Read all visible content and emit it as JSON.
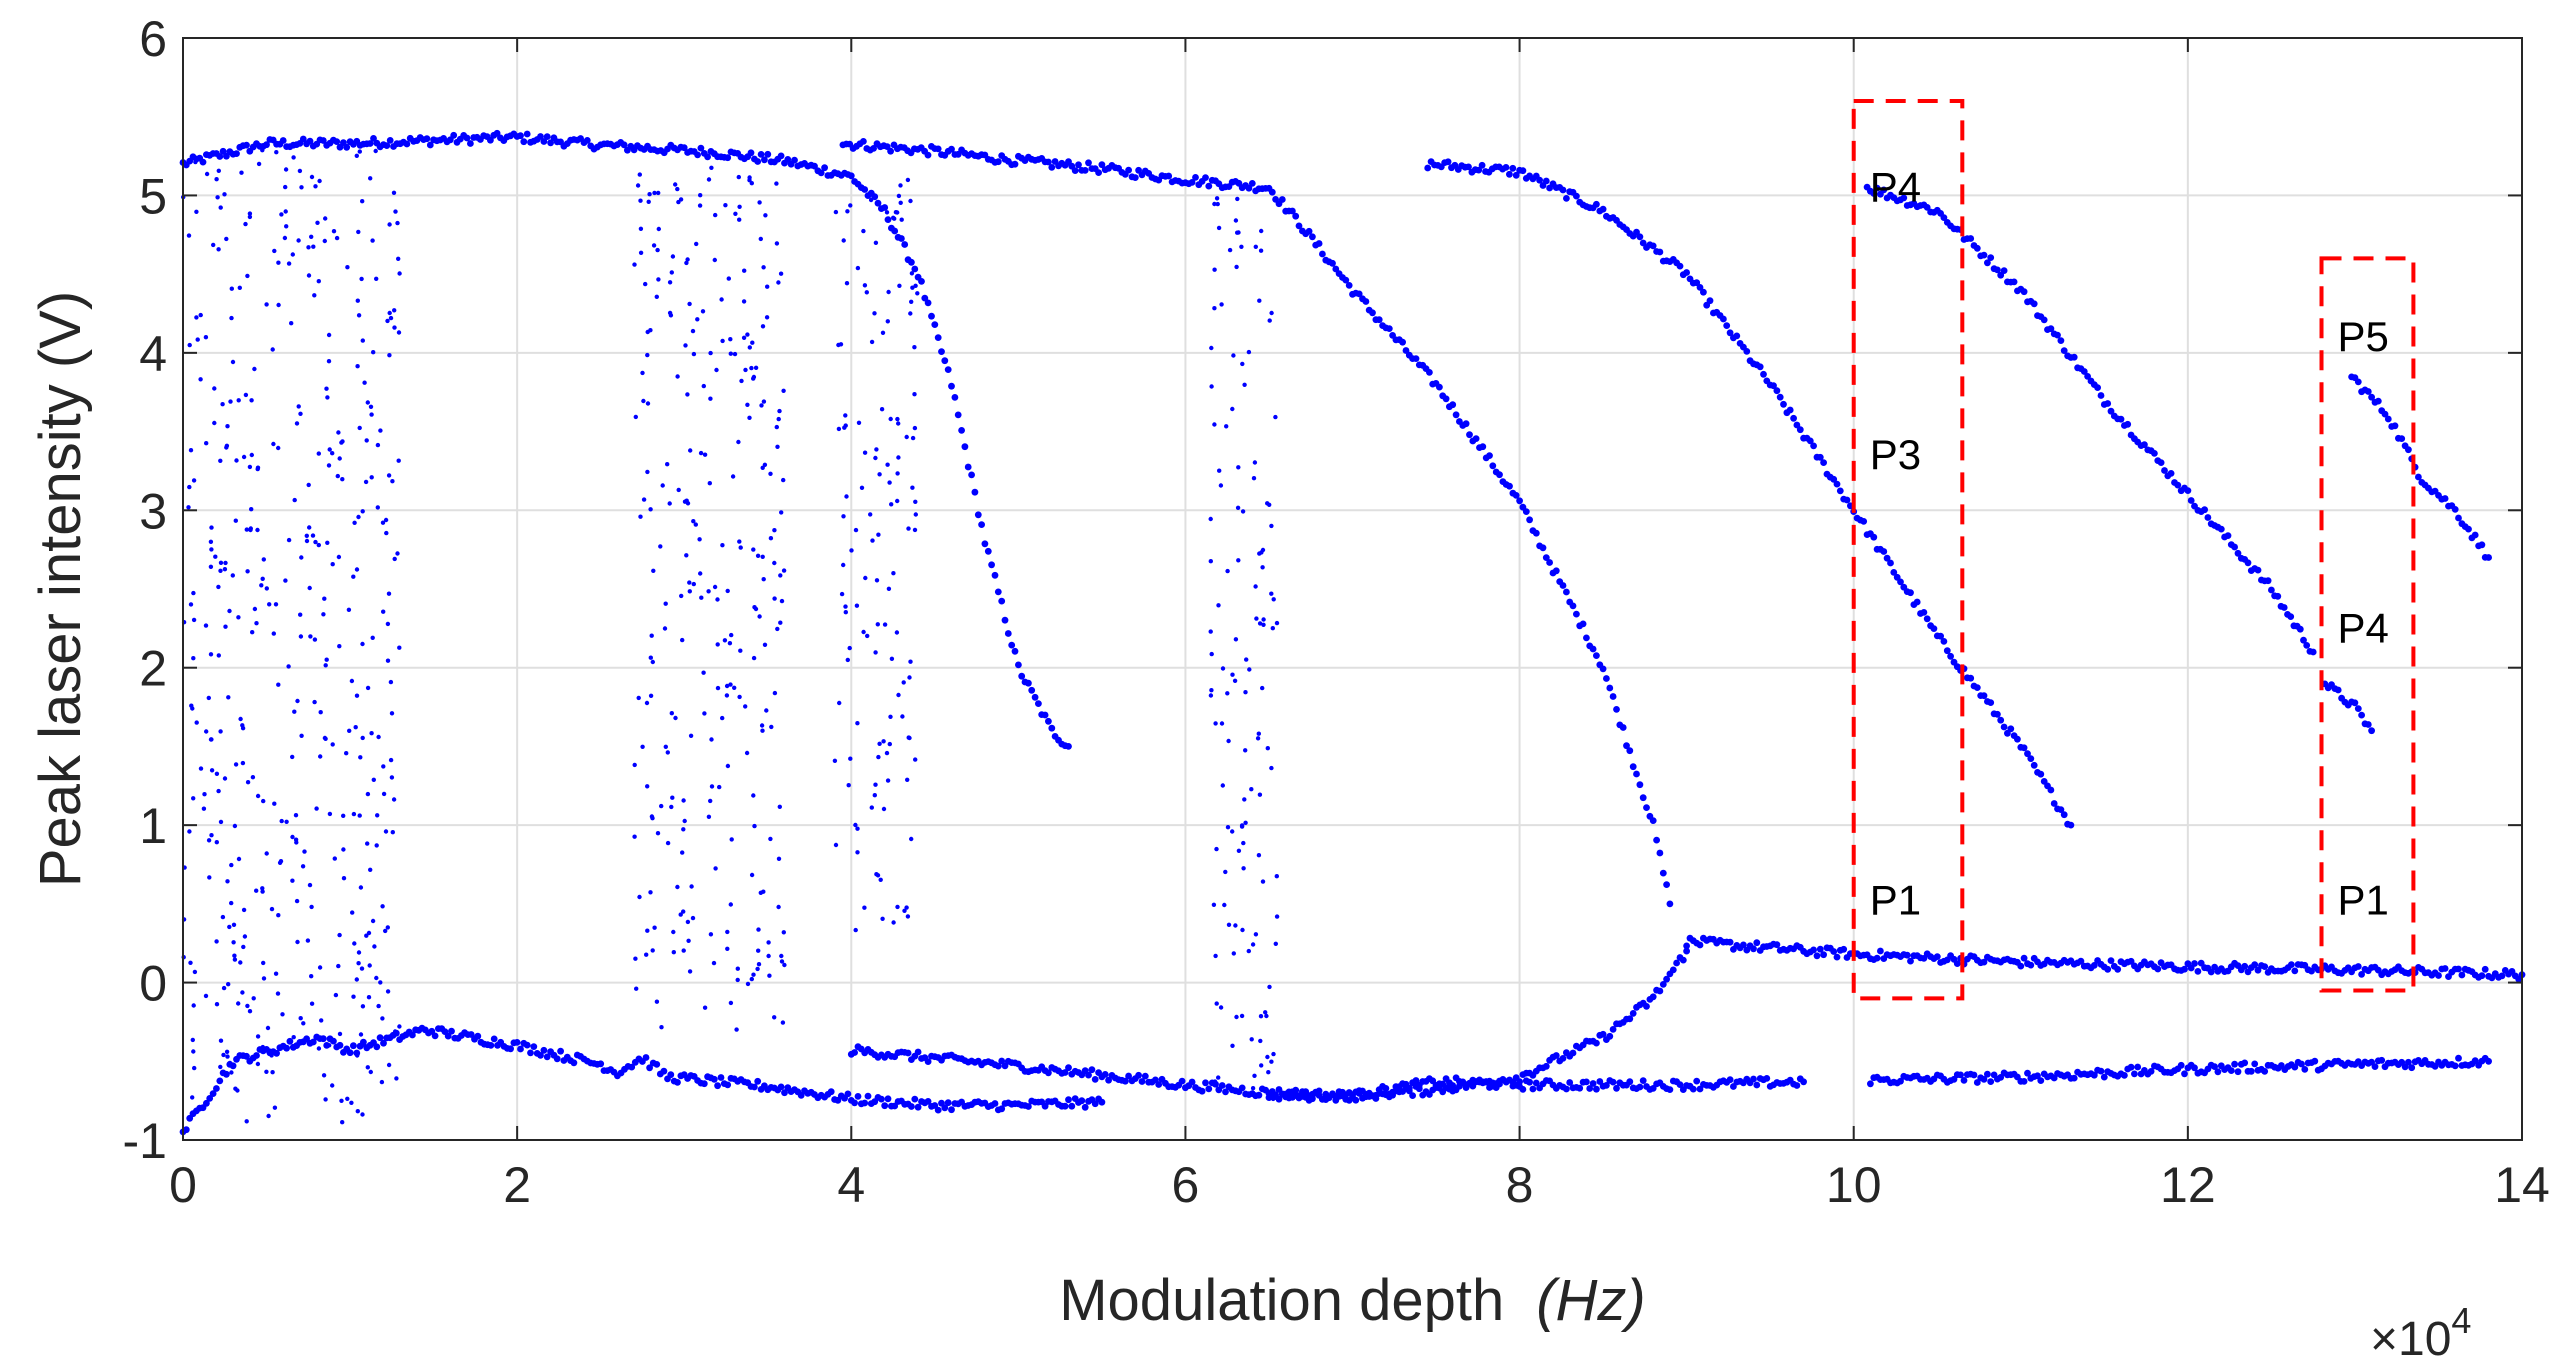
{
  "chart_data": {
    "type": "scatter",
    "title": "",
    "xlabel": "Modulation depth",
    "xlabel_unit": "(Hz)",
    "ylabel": "Peak laser intensity  (V)",
    "x_exponent_label": "×10",
    "x_exponent_power": "4",
    "xlim": [
      0,
      14
    ],
    "ylim": [
      -1,
      6
    ],
    "x_ticks": [
      "0",
      "2",
      "4",
      "6",
      "8",
      "10",
      "12",
      "14"
    ],
    "y_ticks": [
      "-1",
      "0",
      "1",
      "2",
      "3",
      "4",
      "5",
      "6"
    ],
    "grid": true,
    "marker_color": "#0000ff",
    "highlight_color": "#ff0000",
    "series": [
      {
        "branches": [
          {
            "kind": "curve",
            "points": [
              [
                0.0,
                5.2
              ],
              [
                0.5,
                5.33
              ],
              [
                1.0,
                5.33
              ],
              [
                1.5,
                5.35
              ],
              [
                2.0,
                5.37
              ],
              [
                2.5,
                5.32
              ],
              [
                2.8,
                5.3
              ],
              [
                3.2,
                5.27
              ],
              [
                3.6,
                5.22
              ],
              [
                4.0,
                5.12
              ],
              [
                4.2,
                4.9
              ],
              [
                4.4,
                4.5
              ],
              [
                4.6,
                3.8
              ],
              [
                4.8,
                2.8
              ],
              [
                5.0,
                2.0
              ],
              [
                5.2,
                1.6
              ],
              [
                5.3,
                1.5
              ]
            ]
          },
          {
            "kind": "curve",
            "points": [
              [
                3.95,
                5.33
              ],
              [
                4.5,
                5.28
              ],
              [
                5.0,
                5.22
              ],
              [
                5.5,
                5.17
              ],
              [
                6.0,
                5.1
              ],
              [
                6.5,
                5.05
              ],
              [
                6.7,
                4.8
              ],
              [
                7.0,
                4.4
              ],
              [
                7.5,
                3.8
              ],
              [
                8.0,
                3.05
              ],
              [
                8.5,
                2.0
              ],
              [
                8.8,
                1.0
              ],
              [
                8.9,
                0.5
              ]
            ]
          },
          {
            "kind": "curve",
            "points": [
              [
                7.45,
                5.2
              ],
              [
                8.0,
                5.15
              ],
              [
                8.5,
                4.9
              ],
              [
                9.0,
                4.5
              ],
              [
                9.5,
                3.8
              ],
              [
                10.0,
                3.0
              ],
              [
                10.5,
                2.2
              ],
              [
                11.0,
                1.5
              ],
              [
                11.3,
                1.0
              ]
            ]
          },
          {
            "kind": "curve",
            "points": [
              [
                10.08,
                5.05
              ],
              [
                10.5,
                4.9
              ],
              [
                11.0,
                4.4
              ],
              [
                11.5,
                3.7
              ],
              [
                12.0,
                3.1
              ],
              [
                12.5,
                2.5
              ],
              [
                12.75,
                2.1
              ]
            ]
          },
          {
            "kind": "curve",
            "points": [
              [
                12.82,
                1.9
              ],
              [
                13.0,
                1.75
              ],
              [
                13.1,
                1.6
              ]
            ]
          },
          {
            "kind": "curve",
            "points": [
              [
                12.98,
                3.85
              ],
              [
                13.2,
                3.6
              ],
              [
                13.4,
                3.2
              ],
              [
                13.6,
                3.0
              ],
              [
                13.8,
                2.7
              ]
            ]
          },
          {
            "kind": "curve",
            "points": [
              [
                9.0,
                0.26
              ],
              [
                10.0,
                0.18
              ],
              [
                11.0,
                0.13
              ],
              [
                12.0,
                0.1
              ],
              [
                13.0,
                0.08
              ],
              [
                14.0,
                0.05
              ]
            ]
          },
          {
            "kind": "curve",
            "points": [
              [
                0.0,
                -0.95
              ],
              [
                0.3,
                -0.5
              ],
              [
                0.8,
                -0.35
              ],
              [
                1.0,
                -0.43
              ],
              [
                1.2,
                -0.37
              ],
              [
                1.45,
                -0.3
              ],
              [
                2.0,
                -0.4
              ],
              [
                2.5,
                -0.52
              ],
              [
                2.6,
                -0.57
              ],
              [
                2.75,
                -0.48
              ],
              [
                2.9,
                -0.6
              ],
              [
                3.5,
                -0.66
              ],
              [
                4.0,
                -0.74
              ],
              [
                4.5,
                -0.78
              ],
              [
                5.0,
                -0.78
              ],
              [
                5.5,
                -0.76
              ]
            ]
          },
          {
            "kind": "curve",
            "points": [
              [
                4.0,
                -0.43
              ],
              [
                5.0,
                -0.53
              ],
              [
                6.0,
                -0.65
              ],
              [
                6.5,
                -0.7
              ],
              [
                7.0,
                -0.72
              ],
              [
                7.5,
                -0.63
              ],
              [
                8.0,
                -0.65
              ],
              [
                9.0,
                -0.65
              ],
              [
                9.7,
                -0.63
              ]
            ]
          },
          {
            "kind": "curve",
            "points": [
              [
                6.5,
                -0.72
              ],
              [
                7.0,
                -0.72
              ],
              [
                7.5,
                -0.68
              ],
              [
                8.0,
                -0.6
              ],
              [
                8.5,
                -0.35
              ],
              [
                8.8,
                -0.1
              ],
              [
                9.0,
                0.2
              ]
            ]
          },
          {
            "kind": "curve",
            "points": [
              [
                10.1,
                -0.62
              ],
              [
                11.0,
                -0.6
              ],
              [
                12.0,
                -0.55
              ],
              [
                13.0,
                -0.52
              ],
              [
                13.8,
                -0.5
              ]
            ]
          },
          {
            "kind": "band",
            "x": [
              2.7,
              3.6
            ],
            "y": [
              -0.3,
              5.2
            ]
          },
          {
            "kind": "band",
            "x": [
              3.9,
              4.4
            ],
            "y": [
              0.3,
              5.1
            ]
          },
          {
            "kind": "band",
            "x": [
              6.15,
              6.55
            ],
            "y": [
              -0.75,
              5.1
            ]
          },
          {
            "kind": "band",
            "x": [
              0.0,
              1.3
            ],
            "y": [
              -0.9,
              5.3
            ]
          }
        ]
      }
    ],
    "highlight_boxes": [
      {
        "x": [
          10.0,
          10.65
        ],
        "y": [
          -0.1,
          5.6
        ],
        "labels": [
          {
            "text": "P4",
            "y": 5.05
          },
          {
            "text": "P3",
            "y": 3.35
          },
          {
            "text": "P1",
            "y": 0.52
          }
        ]
      },
      {
        "x": [
          12.8,
          13.35
        ],
        "y": [
          -0.05,
          4.6
        ],
        "labels": [
          {
            "text": "P5",
            "y": 4.1
          },
          {
            "text": "P4",
            "y": 2.25
          },
          {
            "text": "P1",
            "y": 0.52
          }
        ]
      }
    ]
  }
}
